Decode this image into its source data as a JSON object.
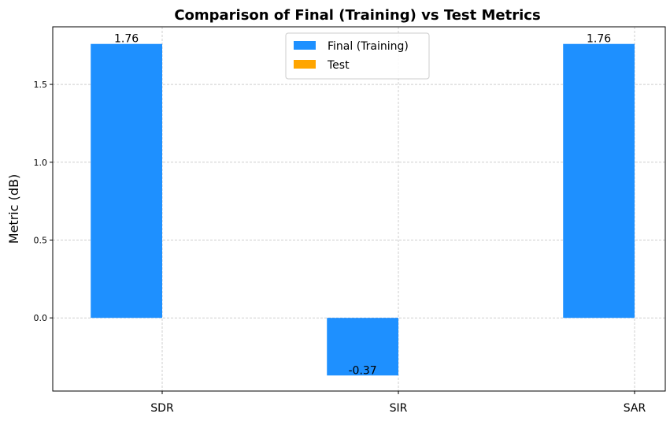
{
  "chart_data": {
    "type": "bar",
    "title": "Comparison of Final (Training) vs Test Metrics",
    "xlabel": "",
    "ylabel": "Metric (dB)",
    "categories": [
      "SDR",
      "SIR",
      "SAR"
    ],
    "series": [
      {
        "name": "Final (Training)",
        "values": [
          1.76,
          -0.37,
          1.76
        ],
        "color": "#1e90ff"
      },
      {
        "name": "Test",
        "values": [
          null,
          null,
          null
        ],
        "color": "#ffa500"
      }
    ],
    "data_labels": [
      "1.76",
      "-0.37",
      "1.76"
    ],
    "ylim": [
      -0.47,
      1.87
    ],
    "yticks": [
      0.0,
      0.5,
      1.0,
      1.5
    ],
    "ytick_labels": [
      "0.0",
      "0.5",
      "1.0",
      "1.5"
    ],
    "grid": true,
    "legend_position": "top-center"
  }
}
